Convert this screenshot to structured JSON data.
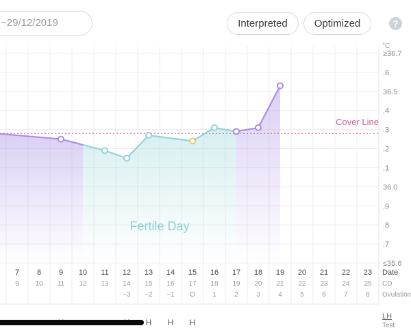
{
  "header": {
    "date_range": "~29/12/2019",
    "interpreted_label": "Interpreted",
    "optimized_label": "Optimized",
    "help_label": "?"
  },
  "colors": {
    "purple": "#a98ee0",
    "teal": "#97d1d6",
    "yellow": "#e9c868",
    "cover_line": "#cc5c95",
    "fertile_text": "#8fd0d6",
    "grid": "#ececec"
  },
  "chart_data": {
    "type": "line",
    "y_unit": "°C",
    "y_ticks": [
      "≥36.7",
      ".6",
      "36.5",
      ".4",
      ".3",
      ".2",
      ".1",
      "36.0",
      ".9",
      ".8",
      ".7",
      "≤35.6"
    ],
    "ylim": [
      35.6,
      36.7
    ],
    "cover_line": 36.28,
    "cover_line_label": "Cover Line",
    "fertile_label": "Fertile Day",
    "fertile_range": [
      10,
      17
    ],
    "row_labels": {
      "date": "Date",
      "cd": "CD",
      "ovulation": "Ovulation",
      "lh": "LH",
      "test": "Test"
    },
    "x_dates": [
      "7",
      "8",
      "9",
      "10",
      "11",
      "12",
      "13",
      "14",
      "15",
      "16",
      "17",
      "18",
      "19",
      "20",
      "21",
      "22",
      "23"
    ],
    "x_cd": [
      "9",
      "10",
      "11",
      "12",
      "13",
      "14",
      "15",
      "16",
      "17",
      "18",
      "19",
      "20",
      "21",
      "22",
      "23",
      "24",
      "25"
    ],
    "ovulation": {
      "12": "−3",
      "13": "−2",
      "14": "−1",
      "15": "O",
      "16": "1",
      "17": "2",
      "18": "3",
      "19": "4",
      "20": "5",
      "21": "6",
      "22": "7",
      "23": "8"
    },
    "lh": {
      "9": "H",
      "12": "H",
      "13": "H",
      "14": "H",
      "15": "H"
    },
    "points": [
      {
        "x": 6,
        "y": 36.28
      },
      {
        "x": 9,
        "y": 36.25,
        "marker": true,
        "color": "purple"
      },
      {
        "x": 11,
        "y": 36.19,
        "marker": true,
        "color": "teal"
      },
      {
        "x": 12,
        "y": 36.15,
        "marker": true,
        "color": "teal"
      },
      {
        "x": 13,
        "y": 36.27,
        "marker": true,
        "color": "teal"
      },
      {
        "x": 15,
        "y": 36.24,
        "marker": true,
        "color": "yellow"
      },
      {
        "x": 16,
        "y": 36.31,
        "marker": true,
        "color": "teal"
      },
      {
        "x": 17,
        "y": 36.29,
        "marker": true,
        "color": "purple"
      },
      {
        "x": 18,
        "y": 36.31,
        "marker": true,
        "color": "purple"
      },
      {
        "x": 19,
        "y": 36.53,
        "marker": true,
        "color": "purple"
      }
    ]
  }
}
